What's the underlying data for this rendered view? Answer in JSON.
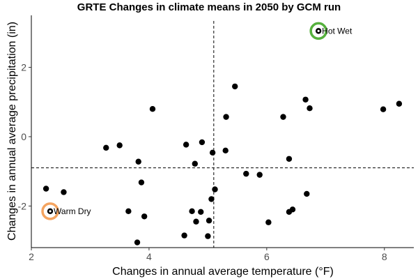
{
  "chart_data": {
    "type": "scatter",
    "title": "GRTE Changes in climate means in 2050 by GCM run",
    "xlabel": "Changes in annual average temperature (°F)",
    "ylabel": "Changes in annual average precipitation (in)",
    "xlim": [
      2,
      8.5
    ],
    "ylim": [
      -3.2,
      3.5
    ],
    "xticks": [
      2,
      4,
      6,
      8
    ],
    "yticks": [
      -2,
      0,
      2
    ],
    "xtick_labels": [
      "2",
      "4",
      "6",
      "8"
    ],
    "ytick_labels": [
      "-2",
      "0",
      "2"
    ],
    "grid": false,
    "reference_lines": {
      "x": 5.1,
      "y": -0.9,
      "style": "dashed"
    },
    "points": [
      {
        "x": 2.25,
        "y": -1.5
      },
      {
        "x": 2.55,
        "y": -1.6
      },
      {
        "x": 3.27,
        "y": -0.32
      },
      {
        "x": 3.5,
        "y": -0.25
      },
      {
        "x": 3.65,
        "y": -2.15
      },
      {
        "x": 3.8,
        "y": -3.05
      },
      {
        "x": 3.82,
        "y": -0.72
      },
      {
        "x": 3.87,
        "y": -1.32
      },
      {
        "x": 3.92,
        "y": -2.3
      },
      {
        "x": 4.06,
        "y": 0.8
      },
      {
        "x": 4.6,
        "y": -2.85
      },
      {
        "x": 4.63,
        "y": -0.23
      },
      {
        "x": 4.73,
        "y": -2.15
      },
      {
        "x": 4.78,
        "y": -0.78
      },
      {
        "x": 4.8,
        "y": -2.45
      },
      {
        "x": 4.88,
        "y": -2.17
      },
      {
        "x": 4.9,
        "y": -0.16
      },
      {
        "x": 5.0,
        "y": -2.87
      },
      {
        "x": 5.02,
        "y": -2.42
      },
      {
        "x": 5.06,
        "y": -1.8
      },
      {
        "x": 5.08,
        "y": -0.46
      },
      {
        "x": 5.12,
        "y": -1.52
      },
      {
        "x": 5.3,
        "y": -0.4
      },
      {
        "x": 5.31,
        "y": 0.57
      },
      {
        "x": 5.46,
        "y": 1.45
      },
      {
        "x": 5.65,
        "y": -1.07
      },
      {
        "x": 5.88,
        "y": -1.1
      },
      {
        "x": 6.03,
        "y": -2.47
      },
      {
        "x": 6.28,
        "y": 0.57
      },
      {
        "x": 6.38,
        "y": -0.64
      },
      {
        "x": 6.38,
        "y": -2.17
      },
      {
        "x": 6.44,
        "y": -2.1
      },
      {
        "x": 6.66,
        "y": 1.07
      },
      {
        "x": 6.68,
        "y": -1.65
      },
      {
        "x": 6.73,
        "y": 0.82
      },
      {
        "x": 7.98,
        "y": 0.79
      },
      {
        "x": 8.25,
        "y": 0.95
      }
    ],
    "highlights": [
      {
        "x": 2.32,
        "y": -2.15,
        "label": "Warm Dry",
        "color": "#f4a460"
      },
      {
        "x": 6.88,
        "y": 3.05,
        "label": "Hot Wet",
        "color": "#56b13d"
      }
    ]
  }
}
